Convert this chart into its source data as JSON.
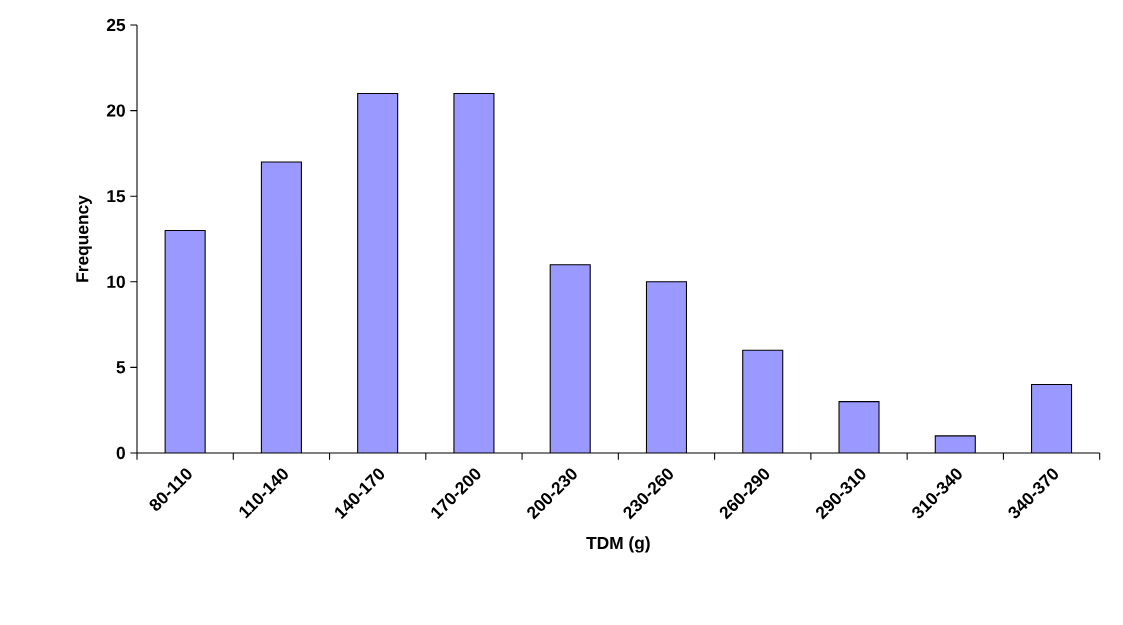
{
  "chart_data": {
    "type": "bar",
    "xlabel": "TDM (g)",
    "ylabel": "Frequency",
    "categories": [
      "80-110",
      "110-140",
      "140-170",
      "170-200",
      "200-230",
      "230-260",
      "260-290",
      "290-310",
      "310-340",
      "340-370"
    ],
    "values": [
      13,
      17,
      21,
      21,
      11,
      10,
      6,
      3,
      1,
      4
    ],
    "color": "#9999ff",
    "ylim": [
      0,
      25
    ],
    "yticks": [
      0,
      5,
      10,
      15,
      20,
      25
    ]
  }
}
